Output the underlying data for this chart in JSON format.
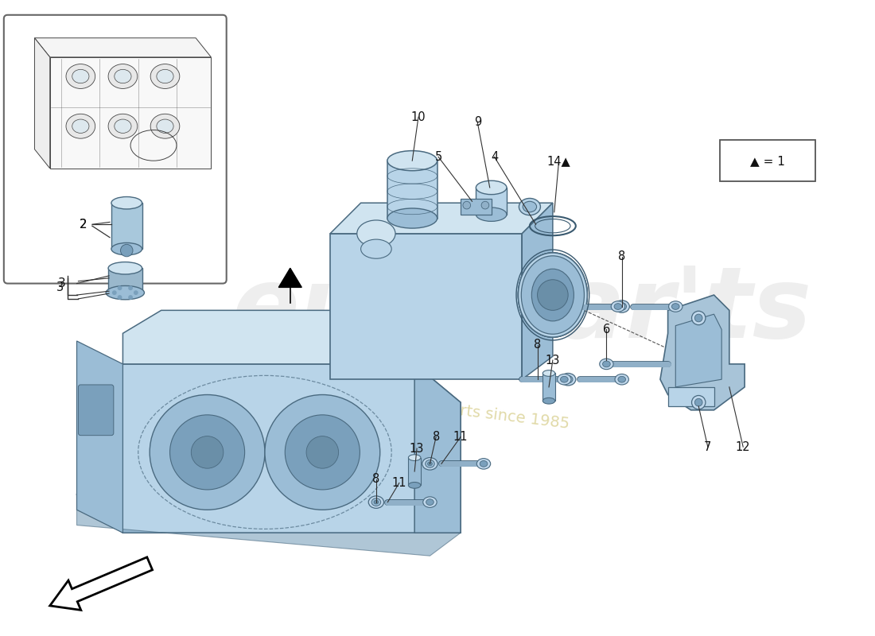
{
  "background_color": "#ffffff",
  "pump_light": "#b8d4e8",
  "pump_mid": "#9bbdd6",
  "pump_dark": "#7aa0bc",
  "pump_shadow": "#6a8fa8",
  "pump_highlight": "#d0e4f0",
  "filter_light": "#a8c8dc",
  "filter_dark": "#7aa0bc",
  "line_color": "#3a5a70",
  "edge_color": "#4a6a80",
  "bracket_color": "#a8c4d8",
  "bolt_color": "#90b0c8",
  "bolt_head": "#c0d8ec",
  "label_color": "#111111",
  "watermark_color": "#e0e0e0",
  "watermark_alpha": 0.55,
  "sub_wm_color": "#c8bb60",
  "sub_wm_alpha": 0.55,
  "legend_symbol": "▲ = 1",
  "inset_bg": "#ffffff",
  "inset_edge": "#555555",
  "sketch_color": "#444444"
}
